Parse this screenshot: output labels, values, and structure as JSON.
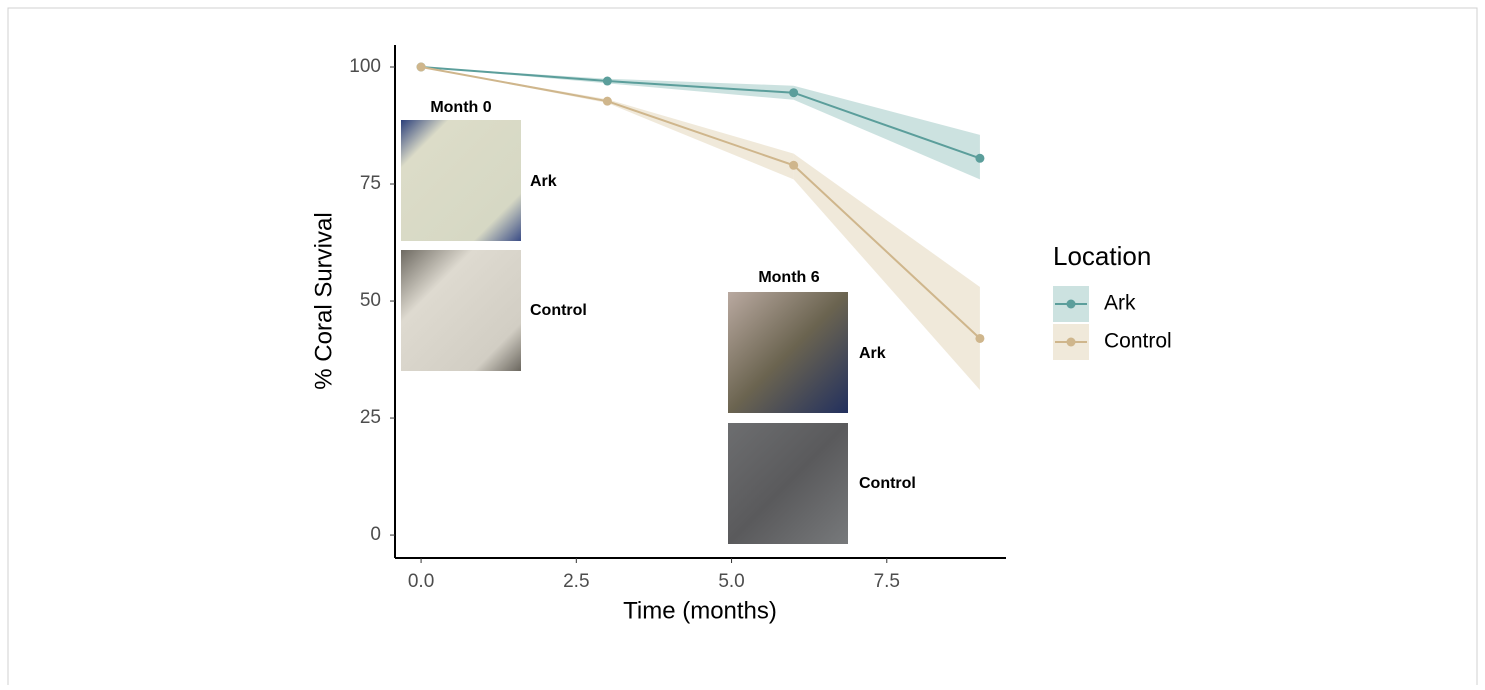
{
  "chart_data": {
    "type": "line",
    "xlabel": "Time (months)",
    "ylabel": "% Coral Survival",
    "x": [
      0,
      3,
      6,
      9
    ],
    "series": [
      {
        "name": "Ark",
        "color": "#5b9e9b",
        "band_color": "#b7d5d3",
        "values": [
          100,
          97,
          94.5,
          80.5
        ],
        "lower": [
          100,
          96.5,
          93,
          76
        ],
        "upper": [
          100,
          97.5,
          96,
          85.5
        ]
      },
      {
        "name": "Control",
        "color": "#cfb68c",
        "band_color": "#e9dfcb",
        "values": [
          100,
          92.7,
          79,
          42
        ],
        "lower": [
          100,
          92.3,
          76,
          31
        ],
        "upper": [
          100,
          93.1,
          81.5,
          53
        ]
      }
    ],
    "xlim": [
      -0.42,
      9.42
    ],
    "ylim": [
      -4.9,
      104.7
    ],
    "xticks": [
      {
        "value": 0,
        "label": "0.0"
      },
      2.5,
      {
        "value": 5,
        "label": "5.0"
      },
      7.5
    ],
    "yticks": [
      0,
      25,
      50,
      75,
      100
    ],
    "legend_title": "Location",
    "legend": "right",
    "grid": false,
    "insets": [
      {
        "title": "Month 0",
        "labels": [
          "Ark",
          "Control"
        ]
      },
      {
        "title": "Month 6",
        "labels": [
          "Ark",
          "Control"
        ]
      }
    ]
  }
}
